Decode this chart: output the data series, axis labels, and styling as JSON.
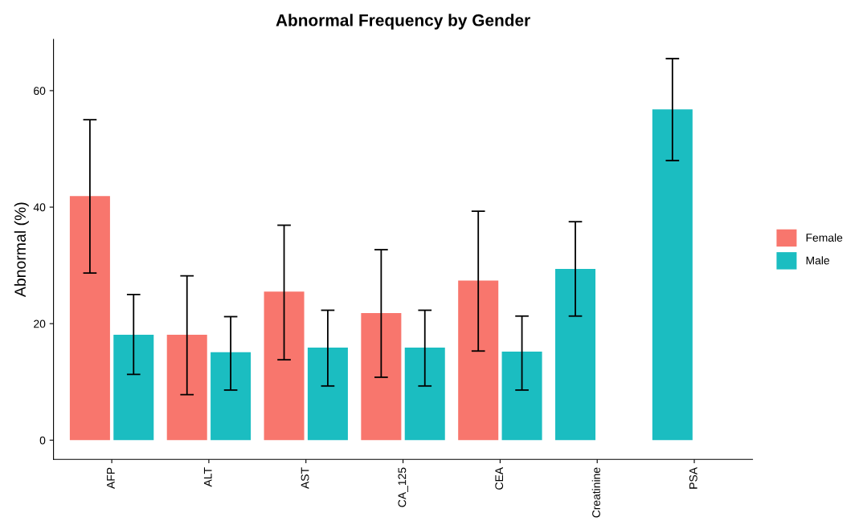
{
  "chart_data": {
    "type": "bar",
    "title": "Abnormal Frequency by Gender",
    "ylabel": "Abnormal (%)",
    "categories": [
      "AFP",
      "ALT",
      "AST",
      "CA_125",
      "CEA",
      "Creatinine",
      "PSA"
    ],
    "series": [
      {
        "name": "Female",
        "color": "#f8766d",
        "values": [
          41.9,
          18.1,
          25.5,
          21.8,
          27.4,
          null,
          null
        ],
        "errors": [
          [
            28.7,
            55.0
          ],
          [
            7.8,
            28.2
          ],
          [
            13.8,
            36.9
          ],
          [
            10.8,
            32.7
          ],
          [
            15.3,
            39.3
          ],
          null,
          null
        ]
      },
      {
        "name": "Male",
        "color": "#1bbdc1",
        "values": [
          18.1,
          15.1,
          15.9,
          15.9,
          15.2,
          29.4,
          56.8
        ],
        "errors": [
          [
            11.3,
            25.0
          ],
          [
            8.6,
            21.2
          ],
          [
            9.3,
            22.3
          ],
          [
            9.3,
            22.3
          ],
          [
            8.6,
            21.3
          ],
          [
            21.3,
            37.5
          ],
          [
            48.0,
            65.5
          ]
        ]
      }
    ],
    "ylim": [
      -3.3,
      68.8
    ],
    "yticks": [
      0,
      20,
      40,
      60
    ],
    "grid": false,
    "legend": "right"
  }
}
